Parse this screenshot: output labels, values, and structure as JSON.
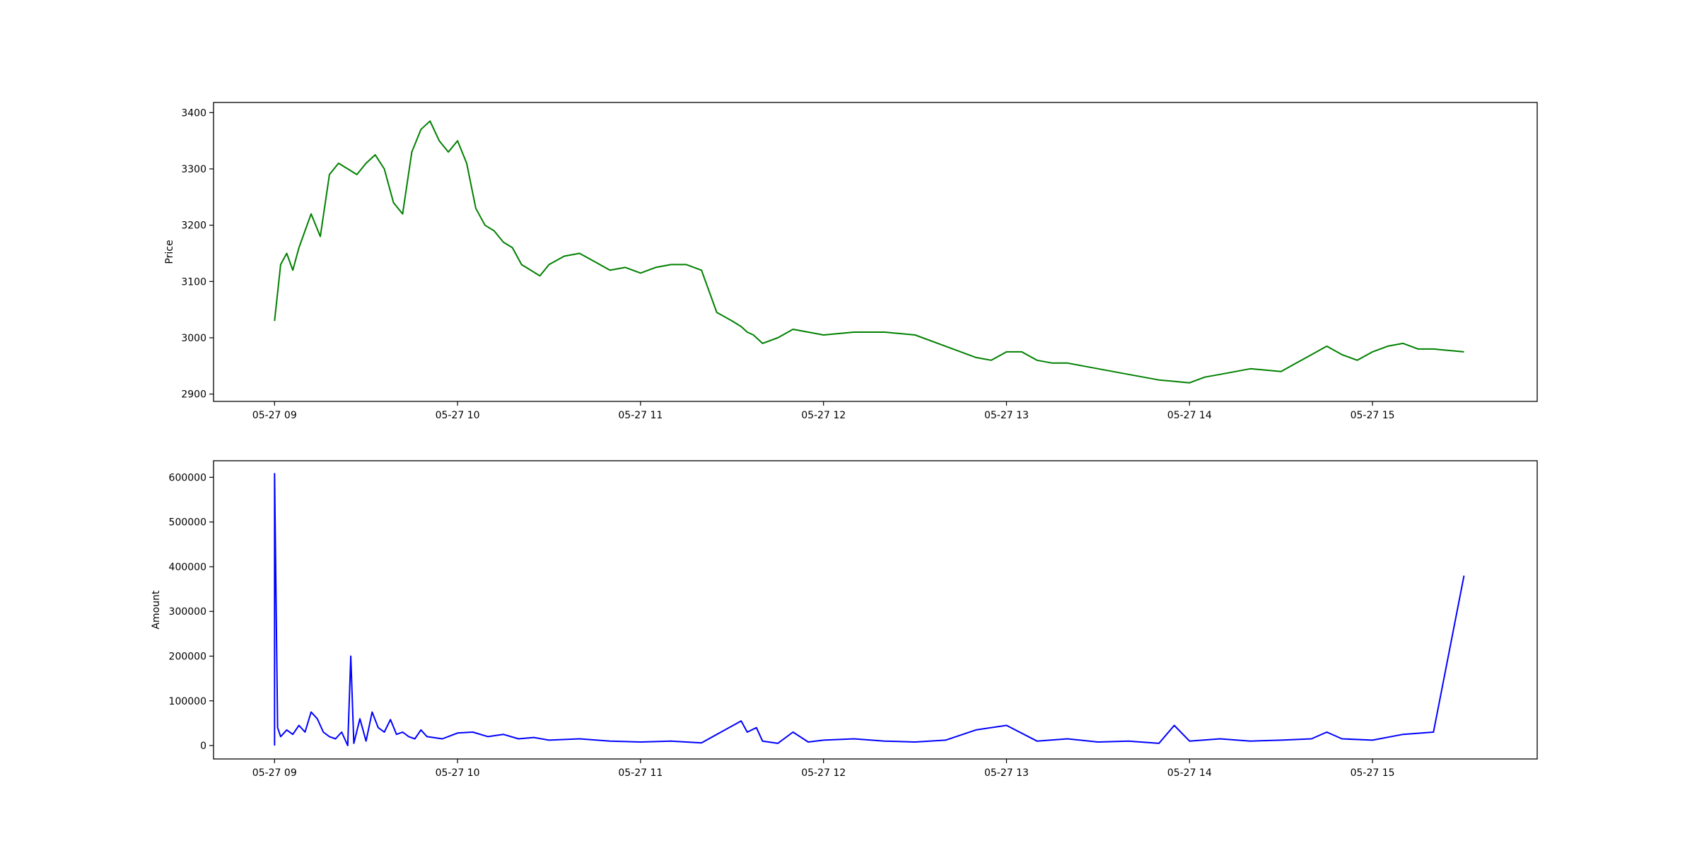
{
  "colors": {
    "price_line": "#008000",
    "amount_line": "#0000ff",
    "axes": "#000000",
    "background": "#ffffff"
  },
  "chart_data": [
    {
      "type": "line",
      "title": "",
      "xlabel": "",
      "ylabel": "Price",
      "xlim": [
        "05-27 08:40",
        "05-27 15:54"
      ],
      "ylim": [
        2887,
        3418
      ],
      "x_ticks": [
        "05-27 09",
        "05-27 10",
        "05-27 11",
        "05-27 12",
        "05-27 13",
        "05-27 14",
        "05-27 15"
      ],
      "y_ticks": [
        2900,
        3000,
        3100,
        3200,
        3300,
        3400
      ],
      "grid": false,
      "series": [
        {
          "color": "#008000",
          "x": [
            "05-27 09:00",
            "05-27 09:02",
            "05-27 09:04",
            "05-27 09:06",
            "05-27 09:08",
            "05-27 09:10",
            "05-27 09:12",
            "05-27 09:15",
            "05-27 09:18",
            "05-27 09:21",
            "05-27 09:24",
            "05-27 09:27",
            "05-27 09:30",
            "05-27 09:33",
            "05-27 09:36",
            "05-27 09:39",
            "05-27 09:42",
            "05-27 09:45",
            "05-27 09:48",
            "05-27 09:51",
            "05-27 09:54",
            "05-27 09:57",
            "05-27 10:00",
            "05-27 10:03",
            "05-27 10:06",
            "05-27 10:09",
            "05-27 10:12",
            "05-27 10:15",
            "05-27 10:18",
            "05-27 10:21",
            "05-27 10:24",
            "05-27 10:27",
            "05-27 10:30",
            "05-27 10:35",
            "05-27 10:40",
            "05-27 10:45",
            "05-27 10:50",
            "05-27 10:55",
            "05-27 11:00",
            "05-27 11:05",
            "05-27 11:10",
            "05-27 11:15",
            "05-27 11:20",
            "05-27 11:25",
            "05-27 11:30",
            "05-27 11:33",
            "05-27 11:35",
            "05-27 11:37",
            "05-27 11:40",
            "05-27 11:45",
            "05-27 11:50",
            "05-27 11:55",
            "05-27 12:00",
            "05-27 12:10",
            "05-27 12:20",
            "05-27 12:30",
            "05-27 12:40",
            "05-27 12:50",
            "05-27 12:55",
            "05-27 13:00",
            "05-27 13:05",
            "05-27 13:10",
            "05-27 13:15",
            "05-27 13:20",
            "05-27 13:25",
            "05-27 13:30",
            "05-27 13:40",
            "05-27 13:50",
            "05-27 14:00",
            "05-27 14:05",
            "05-27 14:10",
            "05-27 14:15",
            "05-27 14:20",
            "05-27 14:30",
            "05-27 14:35",
            "05-27 14:40",
            "05-27 14:45",
            "05-27 14:50",
            "05-27 14:55",
            "05-27 15:00",
            "05-27 15:05",
            "05-27 15:10",
            "05-27 15:15",
            "05-27 15:20",
            "05-27 15:30"
          ],
          "values": [
            3030,
            3130,
            3150,
            3120,
            3160,
            3190,
            3220,
            3180,
            3290,
            3310,
            3300,
            3290,
            3310,
            3325,
            3300,
            3240,
            3220,
            3330,
            3370,
            3385,
            3350,
            3330,
            3350,
            3310,
            3230,
            3200,
            3190,
            3170,
            3160,
            3130,
            3120,
            3110,
            3130,
            3145,
            3150,
            3135,
            3120,
            3125,
            3115,
            3125,
            3130,
            3130,
            3120,
            3045,
            3030,
            3020,
            3010,
            3005,
            2990,
            3000,
            3015,
            3010,
            3005,
            3010,
            3010,
            3005,
            2985,
            2965,
            2960,
            2975,
            2975,
            2960,
            2955,
            2955,
            2950,
            2945,
            2935,
            2925,
            2920,
            2930,
            2935,
            2940,
            2945,
            2940,
            2955,
            2970,
            2985,
            2970,
            2960,
            2975,
            2985,
            2990,
            2980,
            2980,
            2975
          ]
        }
      ]
    },
    {
      "type": "line",
      "title": "",
      "xlabel": "",
      "ylabel": "Amount",
      "xlim": [
        "05-27 08:40",
        "05-27 15:54"
      ],
      "ylim": [
        -30000,
        637000
      ],
      "x_ticks": [
        "05-27 09",
        "05-27 10",
        "05-27 11",
        "05-27 12",
        "05-27 13",
        "05-27 14",
        "05-27 15"
      ],
      "y_ticks": [
        0,
        100000,
        200000,
        300000,
        400000,
        500000,
        600000
      ],
      "grid": false,
      "series": [
        {
          "color": "#0000ff",
          "x": [
            "05-27 09:00",
            "05-27 09:00",
            "05-27 09:01",
            "05-27 09:02",
            "05-27 09:04",
            "05-27 09:06",
            "05-27 09:08",
            "05-27 09:10",
            "05-27 09:12",
            "05-27 09:14",
            "05-27 09:16",
            "05-27 09:18",
            "05-27 09:20",
            "05-27 09:22",
            "05-27 09:24",
            "05-27 09:25",
            "05-27 09:26",
            "05-27 09:28",
            "05-27 09:30",
            "05-27 09:32",
            "05-27 09:34",
            "05-27 09:36",
            "05-27 09:38",
            "05-27 09:40",
            "05-27 09:42",
            "05-27 09:44",
            "05-27 09:46",
            "05-27 09:48",
            "05-27 09:50",
            "05-27 09:55",
            "05-27 10:00",
            "05-27 10:05",
            "05-27 10:10",
            "05-27 10:15",
            "05-27 10:20",
            "05-27 10:25",
            "05-27 10:30",
            "05-27 10:40",
            "05-27 10:50",
            "05-27 11:00",
            "05-27 11:10",
            "05-27 11:20",
            "05-27 11:33",
            "05-27 11:35",
            "05-27 11:38",
            "05-27 11:40",
            "05-27 11:45",
            "05-27 11:50",
            "05-27 11:55",
            "05-27 12:00",
            "05-27 12:10",
            "05-27 12:20",
            "05-27 12:30",
            "05-27 12:40",
            "05-27 12:50",
            "05-27 13:00",
            "05-27 13:10",
            "05-27 13:20",
            "05-27 13:30",
            "05-27 13:40",
            "05-27 13:50",
            "05-27 13:55",
            "05-27 14:00",
            "05-27 14:10",
            "05-27 14:20",
            "05-27 14:30",
            "05-27 14:40",
            "05-27 14:45",
            "05-27 14:50",
            "05-27 15:00",
            "05-27 15:10",
            "05-27 15:20",
            "05-27 15:30"
          ],
          "values": [
            0,
            608000,
            40000,
            20000,
            35000,
            25000,
            45000,
            30000,
            75000,
            60000,
            30000,
            20000,
            15000,
            30000,
            0,
            200000,
            5000,
            60000,
            10000,
            75000,
            40000,
            30000,
            58000,
            25000,
            30000,
            20000,
            15000,
            35000,
            20000,
            15000,
            28000,
            30000,
            20000,
            25000,
            15000,
            18000,
            12000,
            15000,
            10000,
            8000,
            10000,
            6000,
            55000,
            30000,
            40000,
            10000,
            5000,
            30000,
            8000,
            12000,
            15000,
            10000,
            8000,
            12000,
            35000,
            45000,
            10000,
            15000,
            8000,
            10000,
            5000,
            45000,
            10000,
            15000,
            10000,
            12000,
            15000,
            30000,
            15000,
            12000,
            25000,
            30000,
            380000
          ]
        }
      ]
    }
  ]
}
